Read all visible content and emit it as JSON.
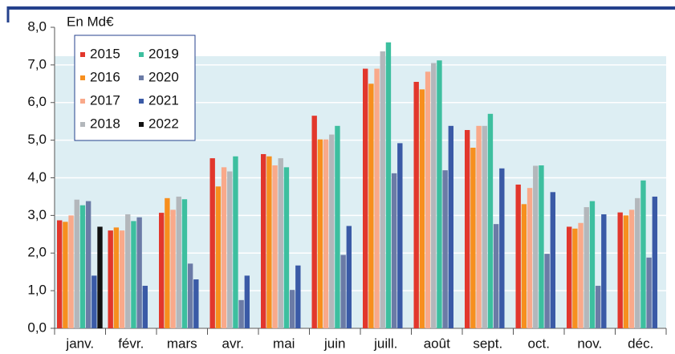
{
  "chart_data": {
    "type": "bar",
    "title": "En Md€",
    "categories": [
      "janv.",
      "févr.",
      "mars",
      "avr.",
      "mai",
      "juin",
      "juill.",
      "août",
      "sept.",
      "oct.",
      "nov.",
      "déc."
    ],
    "series": [
      {
        "name": "2015",
        "color": "#e2372c",
        "values": [
          2.87,
          2.6,
          3.07,
          4.52,
          4.63,
          5.65,
          6.9,
          6.55,
          5.27,
          3.82,
          2.7,
          3.08
        ]
      },
      {
        "name": "2016",
        "color": "#f78f1e",
        "values": [
          2.83,
          2.68,
          3.46,
          3.77,
          4.57,
          5.02,
          6.5,
          6.35,
          4.8,
          3.3,
          2.65,
          3.0
        ]
      },
      {
        "name": "2017",
        "color": "#f9a98a",
        "values": [
          3.0,
          2.6,
          3.15,
          4.28,
          4.33,
          5.02,
          6.9,
          6.82,
          5.38,
          3.73,
          2.8,
          3.15
        ]
      },
      {
        "name": "2018",
        "color": "#b3b7bb",
        "values": [
          3.42,
          3.03,
          3.5,
          4.17,
          4.52,
          5.15,
          7.36,
          7.05,
          5.38,
          4.32,
          3.22,
          3.46
        ]
      },
      {
        "name": "2019",
        "color": "#3dbf9f",
        "values": [
          3.27,
          2.85,
          3.43,
          4.57,
          4.28,
          5.38,
          7.6,
          7.12,
          5.7,
          4.33,
          3.38,
          3.93
        ]
      },
      {
        "name": "2020",
        "color": "#6b7ba6",
        "values": [
          3.38,
          2.95,
          1.72,
          0.75,
          1.02,
          1.95,
          4.12,
          4.2,
          2.77,
          1.98,
          1.13,
          1.88
        ]
      },
      {
        "name": "2021",
        "color": "#3a5aa6",
        "values": [
          1.4,
          1.13,
          1.3,
          1.4,
          1.67,
          2.72,
          4.92,
          5.38,
          4.25,
          3.62,
          3.03,
          3.5
        ]
      },
      {
        "name": "2022",
        "color": "#111111",
        "values": [
          2.7,
          null,
          null,
          null,
          null,
          null,
          null,
          null,
          null,
          null,
          null,
          null
        ]
      }
    ],
    "ylim": [
      0,
      8
    ],
    "yticks": [
      {
        "value": 0,
        "label": "0,0"
      },
      {
        "value": 1,
        "label": "1,0"
      },
      {
        "value": 2,
        "label": "2,0"
      },
      {
        "value": 3,
        "label": "3,0"
      },
      {
        "value": 4,
        "label": "4,0"
      },
      {
        "value": 5,
        "label": "5,0"
      },
      {
        "value": 6,
        "label": "6,0"
      },
      {
        "value": 7,
        "label": "7,0"
      },
      {
        "value": 8,
        "label": "8,0"
      }
    ],
    "grid": true,
    "legend": "upper left"
  }
}
